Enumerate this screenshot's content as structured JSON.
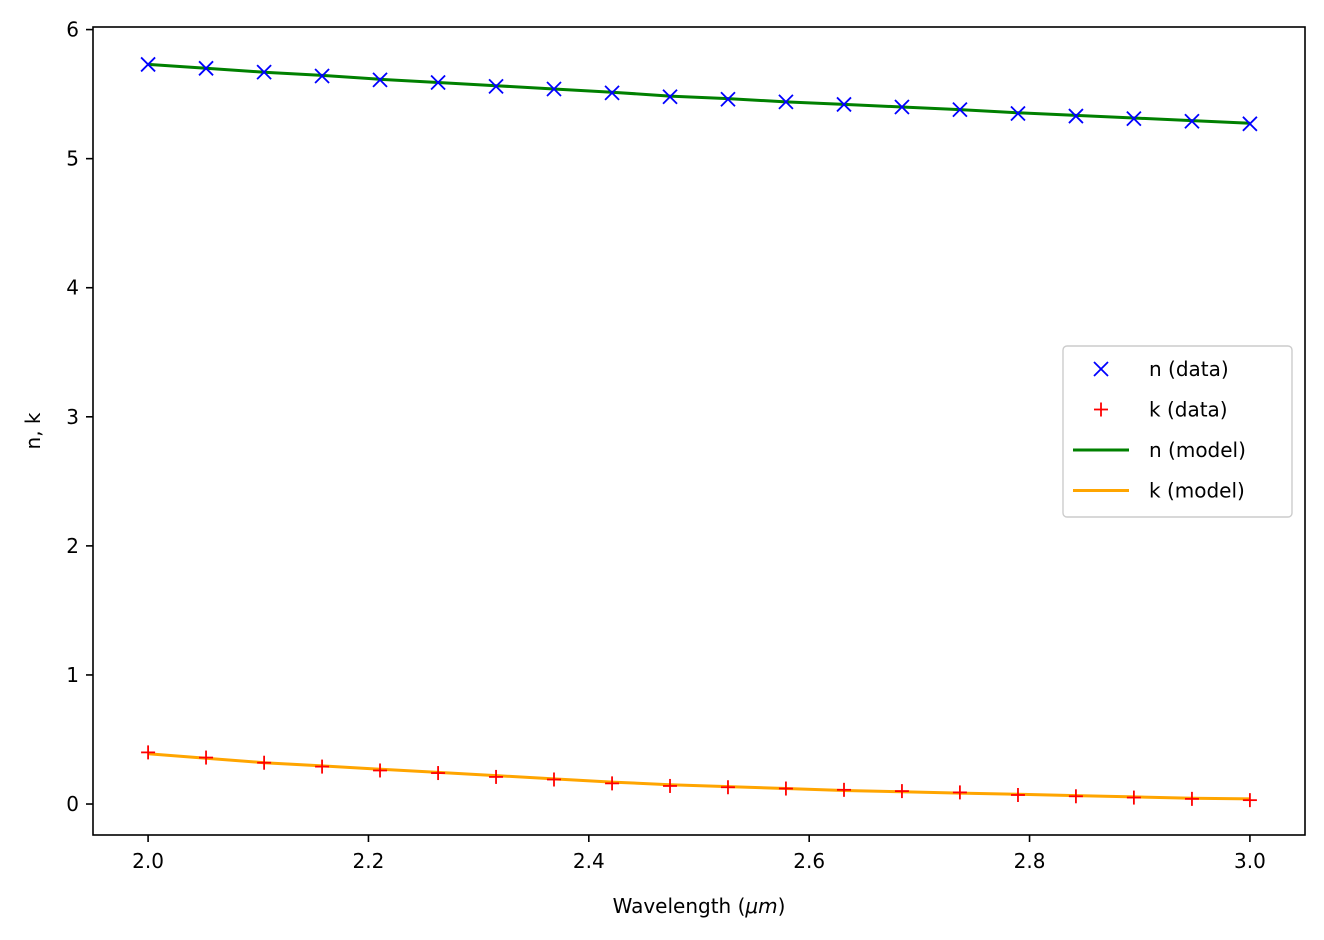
{
  "chart_data": {
    "type": "line",
    "title": "",
    "xlabel_main": "Wavelength (",
    "xlabel_math": "μm",
    "xlabel_close": ")",
    "ylabel": "n, k",
    "xlim": [
      1.95,
      3.05
    ],
    "ylim": [
      -0.24,
      6.02
    ],
    "x_ticks": [
      "2.0",
      "2.2",
      "2.4",
      "2.6",
      "2.8",
      "3.0"
    ],
    "y_ticks": [
      "0",
      "1",
      "2",
      "3",
      "4",
      "5",
      "6"
    ],
    "grid": false,
    "legend_position": "center-right",
    "x": [
      2.0,
      2.0526,
      2.1053,
      2.1579,
      2.2105,
      2.2632,
      2.3158,
      2.3684,
      2.4211,
      2.4737,
      2.5263,
      2.5789,
      2.6316,
      2.6842,
      2.7368,
      2.7895,
      2.8421,
      2.8947,
      2.9474,
      3.0
    ],
    "series": [
      {
        "name": "n (data)",
        "marker": "x",
        "color": "#0000ff",
        "values": [
          5.73,
          5.7,
          5.67,
          5.64,
          5.61,
          5.59,
          5.56,
          5.54,
          5.51,
          5.48,
          5.46,
          5.44,
          5.42,
          5.4,
          5.38,
          5.35,
          5.33,
          5.31,
          5.29,
          5.27
        ]
      },
      {
        "name": "k (data)",
        "marker": "+",
        "color": "#ff0000",
        "values": [
          0.4,
          0.36,
          0.32,
          0.29,
          0.26,
          0.24,
          0.21,
          0.19,
          0.16,
          0.14,
          0.13,
          0.12,
          0.11,
          0.1,
          0.09,
          0.07,
          0.06,
          0.05,
          0.04,
          0.03
        ]
      },
      {
        "name": "n (model)",
        "marker": "line",
        "color": "#008000",
        "values": [
          5.73,
          5.7,
          5.67,
          5.645,
          5.615,
          5.59,
          5.565,
          5.54,
          5.515,
          5.485,
          5.465,
          5.44,
          5.42,
          5.4,
          5.38,
          5.355,
          5.335,
          5.315,
          5.295,
          5.275
        ]
      },
      {
        "name": "k (model)",
        "marker": "line",
        "color": "#ffa500",
        "values": [
          0.39,
          0.355,
          0.32,
          0.295,
          0.27,
          0.245,
          0.22,
          0.195,
          0.17,
          0.15,
          0.135,
          0.12,
          0.105,
          0.095,
          0.085,
          0.075,
          0.065,
          0.055,
          0.045,
          0.04
        ]
      }
    ]
  }
}
